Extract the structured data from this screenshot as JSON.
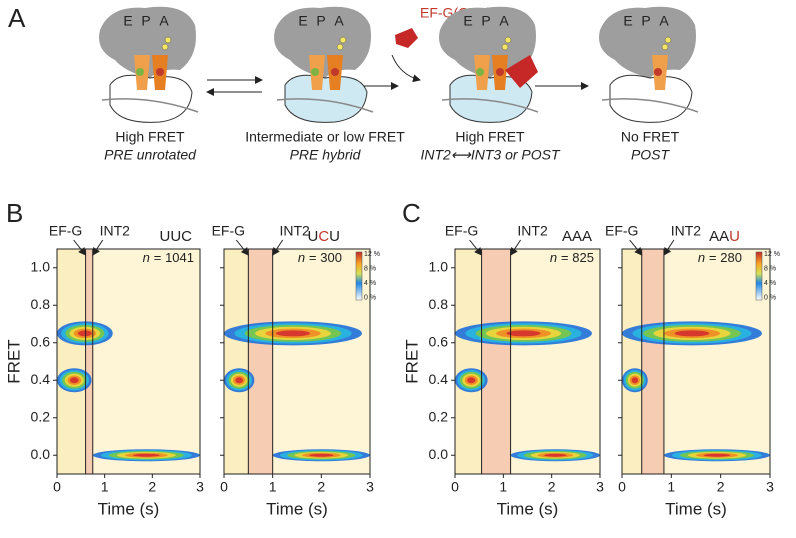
{
  "panel_A": {
    "label": "A",
    "enzyme": "EF-G(GTP)",
    "states": [
      {
        "sites": [
          "E",
          "P",
          "A"
        ],
        "fret": "High FRET",
        "state": "PRE unrotated"
      },
      {
        "sites": [
          "E",
          "P",
          "A"
        ],
        "fret": "Intermediate or low FRET",
        "state": "PRE hybrid"
      },
      {
        "sites": [
          "E",
          "P",
          "A"
        ],
        "fret": "High FRET",
        "state": "INT2⟷INT3 or POST"
      },
      {
        "sites": [
          "E",
          "P",
          "A"
        ],
        "fret": "No FRET",
        "state": "POST"
      }
    ]
  },
  "panels": [
    {
      "label": "B",
      "plots": [
        {
          "codon": [
            "U",
            "U",
            "C"
          ],
          "n_label": "n =",
          "n": 1041,
          "events": [
            {
              "label": "EF-G",
              "time": 0.6
            },
            {
              "label": "INT2",
              "time": 0.75
            }
          ]
        },
        {
          "codon": [
            "U",
            "C",
            "U"
          ],
          "highlight": 1,
          "n_label": "n =",
          "n": 300,
          "events": [
            {
              "label": "EF-G",
              "time": 0.5
            },
            {
              "label": "INT2",
              "time": 1.0
            }
          ],
          "colorbar": [
            "12 %",
            "8 %",
            "4 %",
            "0 %"
          ]
        }
      ]
    },
    {
      "label": "C",
      "plots": [
        {
          "codon": [
            "A",
            "A",
            "A"
          ],
          "n_label": "n =",
          "n": 825,
          "events": [
            {
              "label": "EF-G",
              "time": 0.55
            },
            {
              "label": "INT2",
              "time": 1.15
            }
          ]
        },
        {
          "codon": [
            "A",
            "A",
            "U"
          ],
          "highlight": 2,
          "n_label": "n =",
          "n": 280,
          "events": [
            {
              "label": "EF-G",
              "time": 0.4
            },
            {
              "label": "INT2",
              "time": 0.85
            }
          ],
          "colorbar": [
            "12 %",
            "8 %",
            "4 %",
            "0 %"
          ]
        }
      ]
    }
  ],
  "axes": {
    "ylabel": "FRET",
    "xlabel": "Time (s)",
    "xlim": [
      0,
      3
    ],
    "ylim": [
      -0.1,
      1.1
    ],
    "xticks": [
      0,
      1,
      2,
      3
    ],
    "yticks": [
      {
        "value": 0,
        "label": "0.0"
      },
      {
        "value": 0.2,
        "label": "0.2"
      },
      {
        "value": 0.4,
        "label": "0.4"
      },
      {
        "value": 0.6,
        "label": "0.6"
      },
      {
        "value": 0.8,
        "label": "0.8"
      },
      {
        "value": 1,
        "label": "1.0"
      }
    ]
  },
  "highlight_color": "#c0392b"
}
